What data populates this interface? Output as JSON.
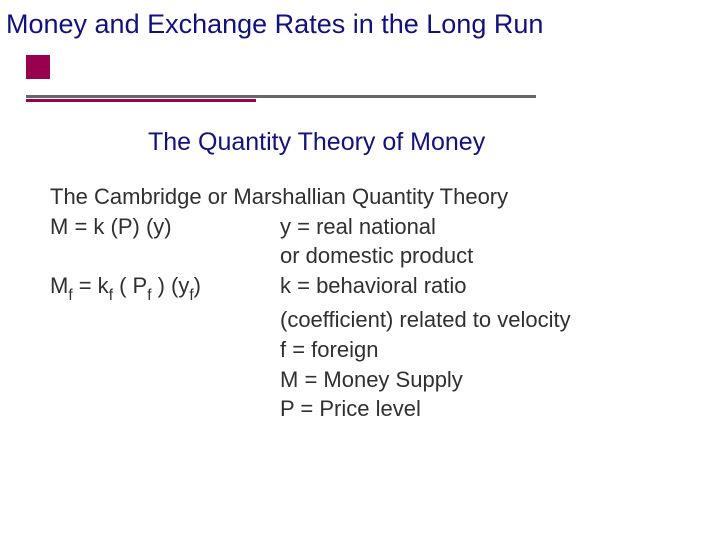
{
  "colors": {
    "title": "#111180",
    "subtitle": "#111180",
    "body": "#303030",
    "accent_square": "#99004d",
    "underline_long": "#666666",
    "underline_short": "#99004d",
    "background": "#ffffff"
  },
  "layout": {
    "underline_long_width": 510,
    "underline_short_width": 230
  },
  "title": "Money and Exchange Rates in the Long Run",
  "subtitle": "The Quantity Theory of Money",
  "body": {
    "line1": "The Cambridge or Marshallian Quantity Theory",
    "eq1": "M = k (P) (y)",
    "def_y1": "y = real national",
    "def_y2": "or domestic product",
    "eq2_a": "M",
    "eq2_b": " = k",
    "eq2_c": " ( P",
    "eq2_d": " ) (y",
    "eq2_e": ")",
    "sub_f": "f",
    "def_k": "k = behavioral ratio",
    "def_k2": "(coefficient) related to velocity",
    "def_f": "f = foreign",
    "def_M": "M = Money Supply",
    "def_P": "P = Price level"
  }
}
